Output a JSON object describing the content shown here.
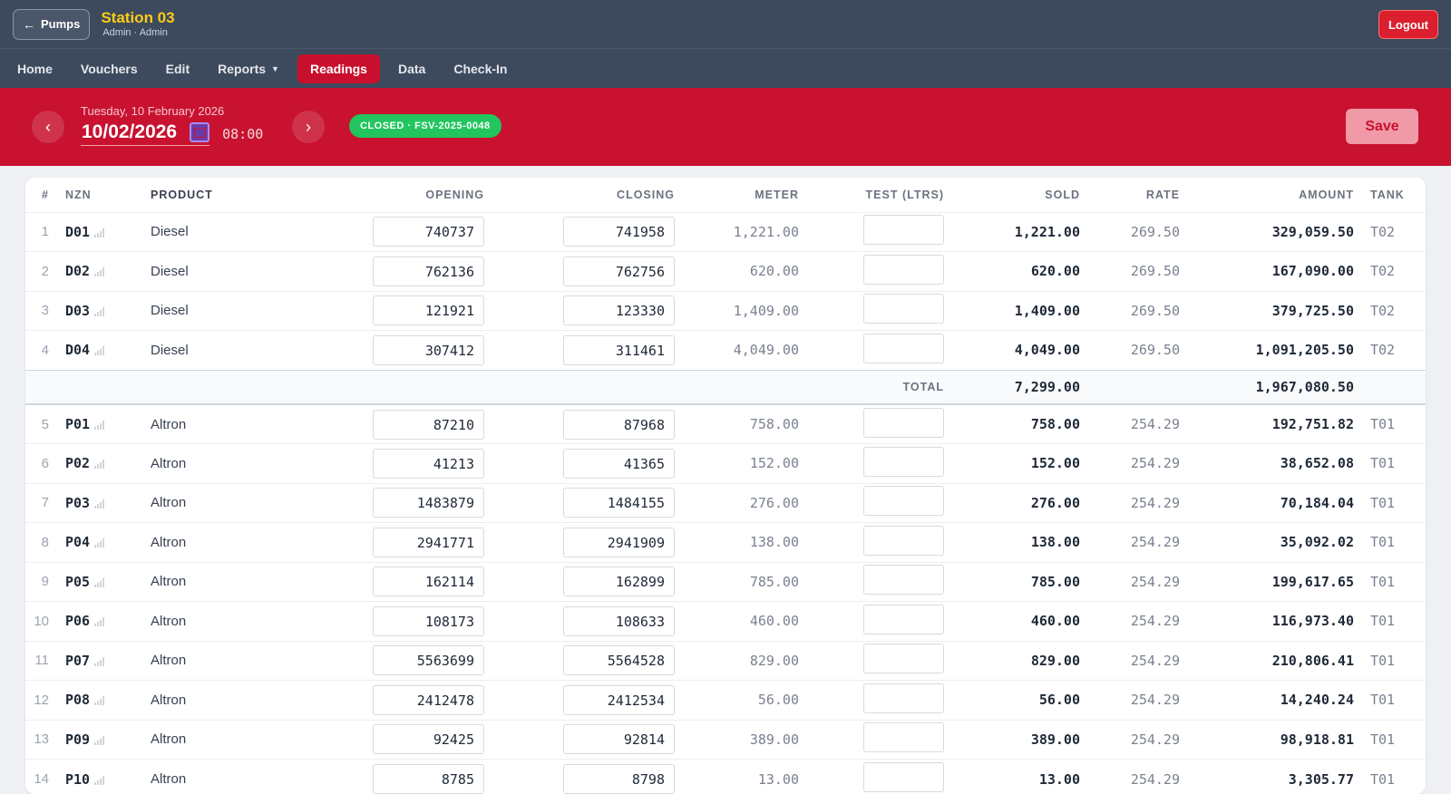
{
  "header": {
    "back_label": "Pumps",
    "station_name": "Station 03",
    "station_sub": "Admin · Admin",
    "logout_label": "Logout"
  },
  "nav": {
    "items": [
      "Home",
      "Vouchers",
      "Edit",
      "Reports",
      "Readings",
      "Data",
      "Check-In"
    ],
    "active": "Readings"
  },
  "banner": {
    "date_long": "Tuesday, 10 February 2026",
    "date_value": "10/02/2026",
    "time": "08:00",
    "status": "CLOSED · FSV-2025-0048",
    "save_label": "Save",
    "prev_glyph": "‹",
    "next_glyph": "›"
  },
  "table": {
    "columns": [
      "#",
      "NZN",
      "PRODUCT",
      "OPENING",
      "CLOSING",
      "METER",
      "TEST (LTRS)",
      "SOLD",
      "RATE",
      "AMOUNT",
      "TANK"
    ],
    "group1": [
      {
        "idx": "1",
        "nzn": "D01",
        "product": "Diesel",
        "opening": "740737",
        "closing": "741958",
        "meter": "1,221.00",
        "sold": "1,221.00",
        "rate": "269.50",
        "amount": "329,059.50",
        "tank": "T02"
      },
      {
        "idx": "2",
        "nzn": "D02",
        "product": "Diesel",
        "opening": "762136",
        "closing": "762756",
        "meter": "620.00",
        "sold": "620.00",
        "rate": "269.50",
        "amount": "167,090.00",
        "tank": "T02"
      },
      {
        "idx": "3",
        "nzn": "D03",
        "product": "Diesel",
        "opening": "121921",
        "closing": "123330",
        "meter": "1,409.00",
        "sold": "1,409.00",
        "rate": "269.50",
        "amount": "379,725.50",
        "tank": "T02"
      },
      {
        "idx": "4",
        "nzn": "D04",
        "product": "Diesel",
        "opening": "307412",
        "closing": "311461",
        "meter": "4,049.00",
        "sold": "4,049.00",
        "rate": "269.50",
        "amount": "1,091,205.50",
        "tank": "T02"
      }
    ],
    "total": {
      "label": "TOTAL",
      "sold": "7,299.00",
      "amount": "1,967,080.50"
    },
    "group2": [
      {
        "idx": "5",
        "nzn": "P01",
        "product": "Altron",
        "opening": "87210",
        "closing": "87968",
        "meter": "758.00",
        "sold": "758.00",
        "rate": "254.29",
        "amount": "192,751.82",
        "tank": "T01"
      },
      {
        "idx": "6",
        "nzn": "P02",
        "product": "Altron",
        "opening": "41213",
        "closing": "41365",
        "meter": "152.00",
        "sold": "152.00",
        "rate": "254.29",
        "amount": "38,652.08",
        "tank": "T01"
      },
      {
        "idx": "7",
        "nzn": "P03",
        "product": "Altron",
        "opening": "1483879",
        "closing": "1484155",
        "meter": "276.00",
        "sold": "276.00",
        "rate": "254.29",
        "amount": "70,184.04",
        "tank": "T01"
      },
      {
        "idx": "8",
        "nzn": "P04",
        "product": "Altron",
        "opening": "2941771",
        "closing": "2941909",
        "meter": "138.00",
        "sold": "138.00",
        "rate": "254.29",
        "amount": "35,092.02",
        "tank": "T01"
      },
      {
        "idx": "9",
        "nzn": "P05",
        "product": "Altron",
        "opening": "162114",
        "closing": "162899",
        "meter": "785.00",
        "sold": "785.00",
        "rate": "254.29",
        "amount": "199,617.65",
        "tank": "T01"
      },
      {
        "idx": "10",
        "nzn": "P06",
        "product": "Altron",
        "opening": "108173",
        "closing": "108633",
        "meter": "460.00",
        "sold": "460.00",
        "rate": "254.29",
        "amount": "116,973.40",
        "tank": "T01"
      },
      {
        "idx": "11",
        "nzn": "P07",
        "product": "Altron",
        "opening": "5563699",
        "closing": "5564528",
        "meter": "829.00",
        "sold": "829.00",
        "rate": "254.29",
        "amount": "210,806.41",
        "tank": "T01"
      },
      {
        "idx": "12",
        "nzn": "P08",
        "product": "Altron",
        "opening": "2412478",
        "closing": "2412534",
        "meter": "56.00",
        "sold": "56.00",
        "rate": "254.29",
        "amount": "14,240.24",
        "tank": "T01"
      },
      {
        "idx": "13",
        "nzn": "P09",
        "product": "Altron",
        "opening": "92425",
        "closing": "92814",
        "meter": "389.00",
        "sold": "389.00",
        "rate": "254.29",
        "amount": "98,918.81",
        "tank": "T01"
      },
      {
        "idx": "14",
        "nzn": "P10",
        "product": "Altron",
        "opening": "8785",
        "closing": "8798",
        "meter": "13.00",
        "sold": "13.00",
        "rate": "254.29",
        "amount": "3,305.77",
        "tank": "T01"
      }
    ]
  },
  "colors": {
    "topbar": "#3d4a5e",
    "accent_red": "#c8122f",
    "station_yellow": "#facc15",
    "status_green": "#22c55e"
  }
}
